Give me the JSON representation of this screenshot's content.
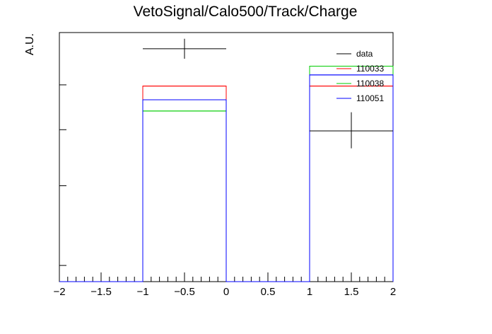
{
  "chart_data": {
    "type": "histogram",
    "title": "VetoSignal/Calo500/Track/Charge",
    "ylabel": "A.U.",
    "xlabel": "",
    "xlim": [
      -2,
      2
    ],
    "y_scale": "log",
    "x_tick_labels": [
      "−2",
      "−1.5",
      "−1",
      "−0.5",
      "0",
      "0.5",
      "1",
      "1.5",
      "2"
    ],
    "x_tick_values": [
      -2,
      -1.5,
      -1,
      -0.5,
      0,
      0.5,
      1,
      1.5,
      2
    ],
    "bins": [
      [
        -1,
        0
      ],
      [
        1,
        2
      ]
    ],
    "data_points": {
      "name": "data",
      "color": "#000000",
      "points": [
        {
          "x": -0.5,
          "xerr": 0.5,
          "y_rel": 0.935,
          "y_lo": 0.895,
          "y_hi": 0.975
        },
        {
          "x": 1.5,
          "xerr": 0.5,
          "y_rel": 0.605,
          "y_lo": 0.535,
          "y_hi": 0.68
        }
      ]
    },
    "series": [
      {
        "name": "110033",
        "color": "#ff0000",
        "bin_heights_rel": [
          0.785,
          0.785
        ]
      },
      {
        "name": "110038",
        "color": "#00cc00",
        "bin_heights_rel": [
          0.685,
          0.865
        ]
      },
      {
        "name": "110051",
        "color": "#0000ff",
        "bin_heights_rel": [
          0.73,
          0.83
        ]
      }
    ],
    "legend_position": "top-right",
    "grid": false
  }
}
